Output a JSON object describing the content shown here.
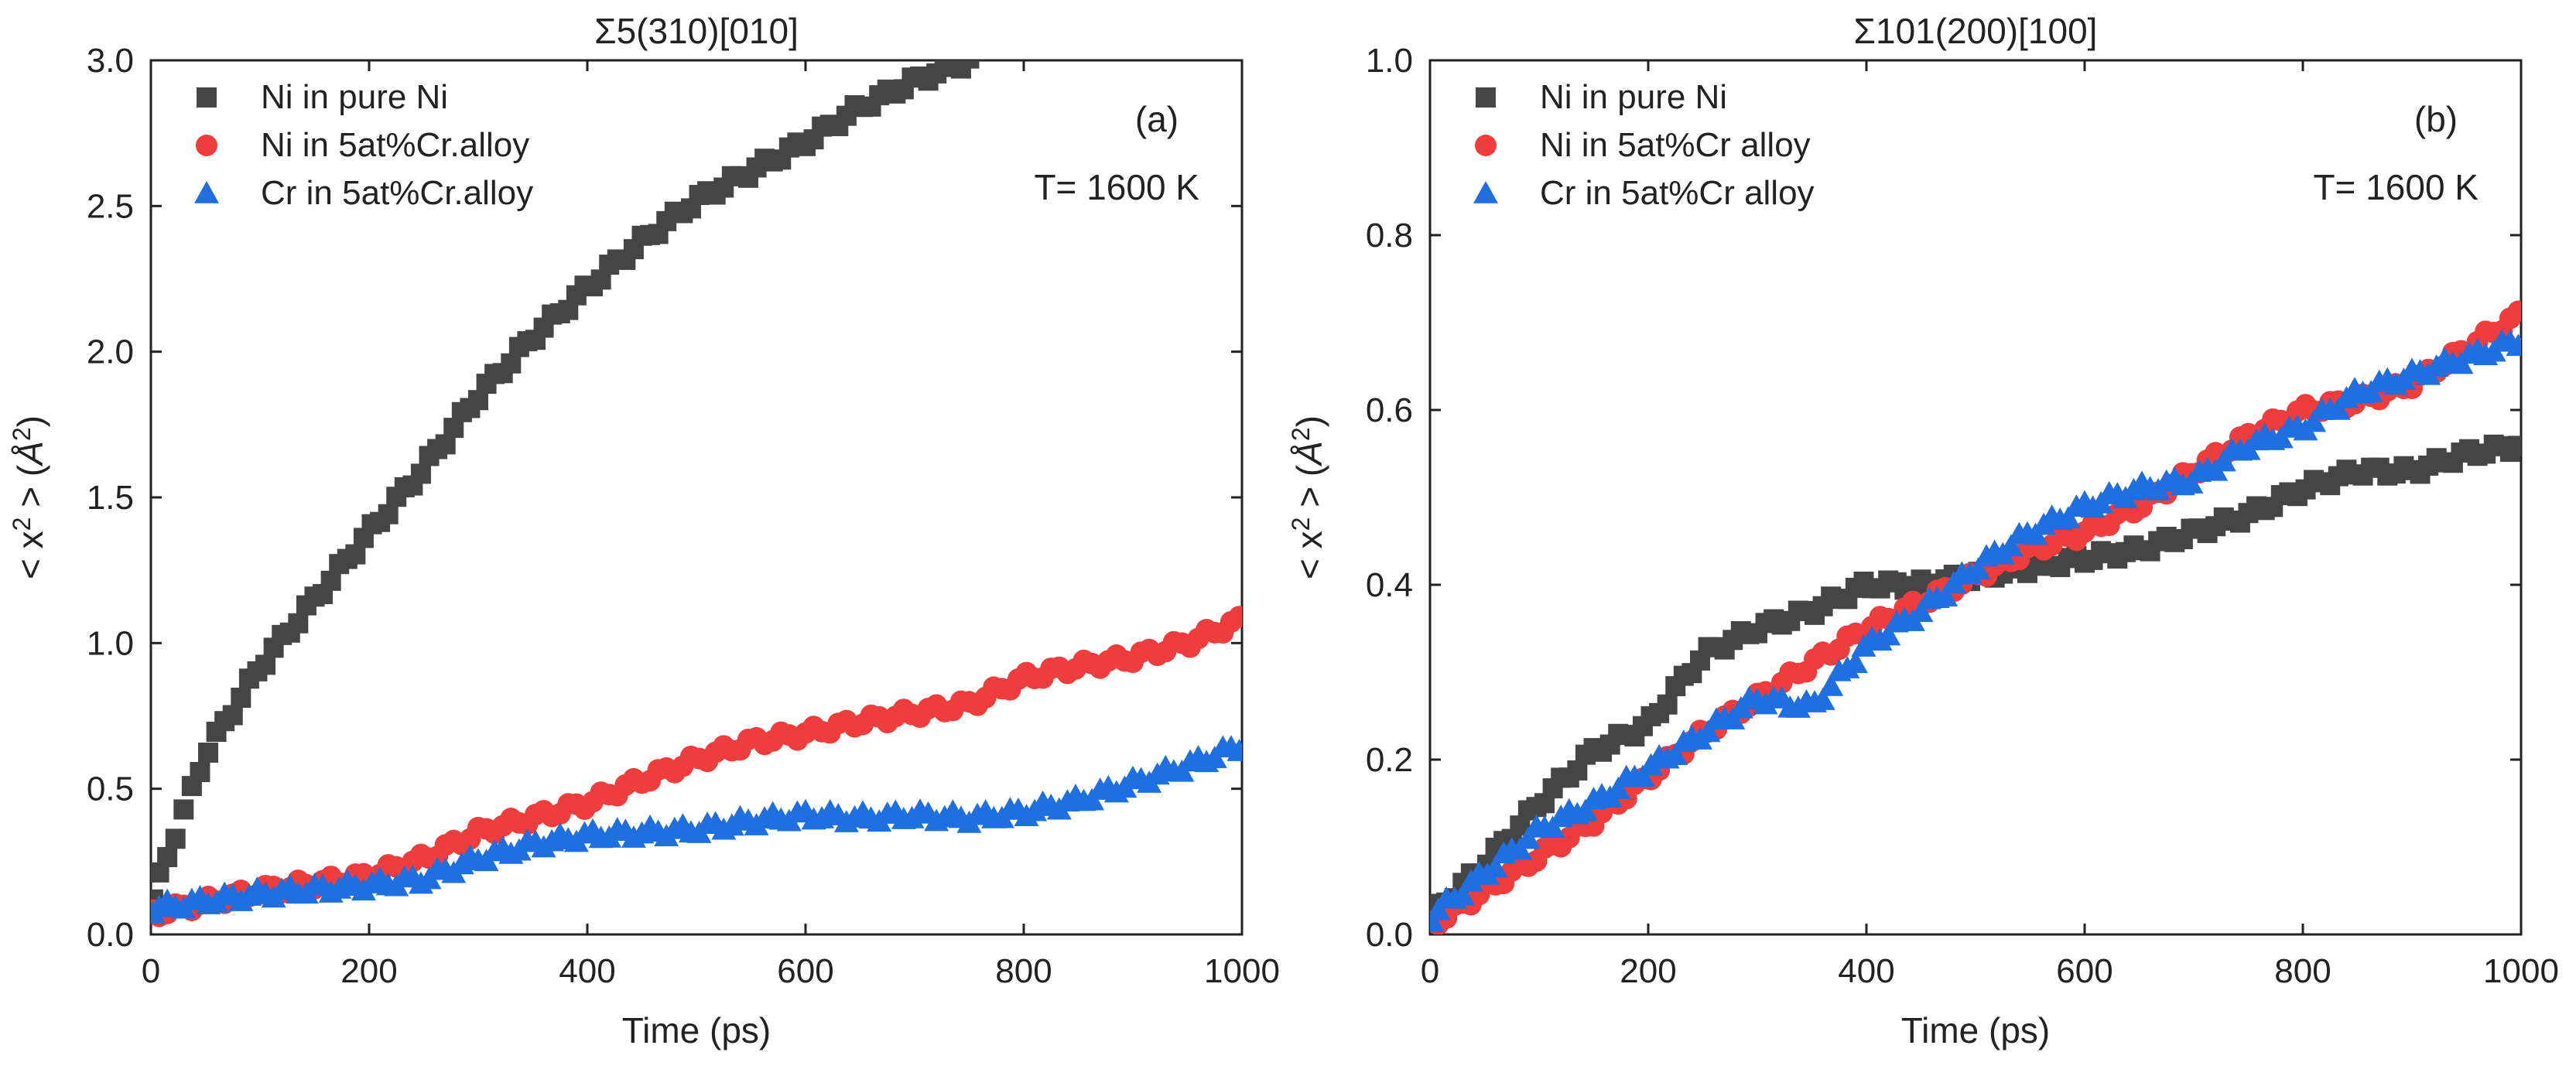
{
  "colors": {
    "pure_ni": "#454545",
    "ni_alloy": "#ef3c3c",
    "cr_alloy": "#1f6fe0",
    "axis": "#222222"
  },
  "chart_data": [
    {
      "type": "scatter",
      "title": "Σ5(310)[010]",
      "panel_label": "(a)",
      "annotation": "T= 1600 K",
      "xlabel": "Time (ps)",
      "ylabel_parts": {
        "prefix": "< x",
        "sup1": "2",
        "mid": " > (",
        "unit": "Å",
        "sup2": "2",
        "suffix": ")"
      },
      "xlim": [
        0,
        1000
      ],
      "ylim": [
        0,
        3.0
      ],
      "xticks": [
        0,
        200,
        400,
        600,
        800,
        1000
      ],
      "yticks": [
        0.0,
        0.5,
        1.0,
        1.5,
        2.0,
        2.5,
        3.0
      ],
      "ytick_labels": [
        "0.0",
        "0.5",
        "1.0",
        "1.5",
        "2.0",
        "2.5",
        "3.0"
      ],
      "legend_position": "top-left",
      "series": [
        {
          "name": "Ni in pure Ni",
          "marker": "square",
          "color": "#454545",
          "x": [
            0,
            50,
            100,
            150,
            200,
            250,
            300,
            350,
            400,
            450,
            500,
            550,
            600,
            650,
            700,
            750
          ],
          "y": [
            0.12,
            0.62,
            0.92,
            1.15,
            1.38,
            1.6,
            1.85,
            2.05,
            2.22,
            2.38,
            2.52,
            2.62,
            2.72,
            2.84,
            2.93,
            3.0
          ]
        },
        {
          "name": "Ni in 5at%Cr.alloy",
          "marker": "circle",
          "color": "#ef3c3c",
          "x": [
            0,
            100,
            200,
            250,
            300,
            350,
            400,
            450,
            500,
            550,
            600,
            650,
            700,
            750,
            800,
            850,
            900,
            950,
            1000
          ],
          "y": [
            0.07,
            0.15,
            0.2,
            0.26,
            0.35,
            0.4,
            0.45,
            0.53,
            0.6,
            0.66,
            0.69,
            0.73,
            0.76,
            0.79,
            0.88,
            0.92,
            0.95,
            1.0,
            1.08
          ]
        },
        {
          "name": "Cr in 5at%Cr.alloy",
          "marker": "triangle",
          "color": "#1f6fe0",
          "x": [
            0,
            100,
            200,
            250,
            300,
            350,
            400,
            450,
            500,
            550,
            600,
            650,
            700,
            750,
            800,
            850,
            900,
            950,
            1000
          ],
          "y": [
            0.09,
            0.14,
            0.17,
            0.19,
            0.26,
            0.31,
            0.34,
            0.35,
            0.36,
            0.39,
            0.41,
            0.4,
            0.41,
            0.4,
            0.42,
            0.46,
            0.52,
            0.58,
            0.65
          ]
        }
      ]
    },
    {
      "type": "scatter",
      "title": "Σ101(200)[100]",
      "panel_label": "(b)",
      "annotation": "T= 1600 K",
      "xlabel": "Time (ps)",
      "ylabel_parts": {
        "prefix": "< x",
        "sup1": "2",
        "mid": " > (",
        "unit": "Å",
        "sup2": "2",
        "suffix": ")"
      },
      "xlim": [
        0,
        1000
      ],
      "ylim": [
        0,
        1.0
      ],
      "xticks": [
        0,
        200,
        400,
        600,
        800,
        1000
      ],
      "yticks": [
        0.0,
        0.2,
        0.4,
        0.6,
        0.8,
        1.0
      ],
      "ytick_labels": [
        "0.0",
        "0.2",
        "0.4",
        "0.6",
        "0.8",
        "1.0"
      ],
      "legend_position": "top-left",
      "series": [
        {
          "name": "Ni in pure Ni",
          "marker": "square",
          "color": "#454545",
          "x": [
            0,
            50,
            100,
            150,
            200,
            250,
            300,
            350,
            400,
            450,
            500,
            550,
            600,
            650,
            700,
            750,
            800,
            850,
            900,
            950,
            1000
          ],
          "y": [
            0.02,
            0.08,
            0.15,
            0.21,
            0.24,
            0.32,
            0.35,
            0.37,
            0.4,
            0.4,
            0.41,
            0.42,
            0.43,
            0.44,
            0.46,
            0.48,
            0.51,
            0.53,
            0.53,
            0.55,
            0.56
          ]
        },
        {
          "name": "Ni in 5at%Cr alloy",
          "marker": "circle",
          "color": "#ef3c3c",
          "x": [
            0,
            50,
            100,
            150,
            200,
            250,
            300,
            350,
            400,
            450,
            500,
            550,
            600,
            650,
            700,
            750,
            800,
            850,
            900,
            950,
            1000
          ],
          "y": [
            0.01,
            0.05,
            0.09,
            0.13,
            0.18,
            0.23,
            0.27,
            0.31,
            0.35,
            0.38,
            0.41,
            0.44,
            0.46,
            0.49,
            0.53,
            0.57,
            0.6,
            0.61,
            0.63,
            0.67,
            0.71
          ]
        },
        {
          "name": "Cr in 5at%Cr alloy",
          "marker": "triangle",
          "color": "#1f6fe0",
          "x": [
            0,
            50,
            100,
            150,
            200,
            250,
            300,
            350,
            400,
            450,
            500,
            550,
            600,
            650,
            700,
            750,
            800,
            850,
            900,
            950,
            1000
          ],
          "y": [
            0.02,
            0.07,
            0.12,
            0.15,
            0.19,
            0.23,
            0.27,
            0.26,
            0.33,
            0.37,
            0.42,
            0.46,
            0.49,
            0.51,
            0.52,
            0.56,
            0.58,
            0.62,
            0.64,
            0.66,
            0.68
          ]
        }
      ]
    }
  ]
}
